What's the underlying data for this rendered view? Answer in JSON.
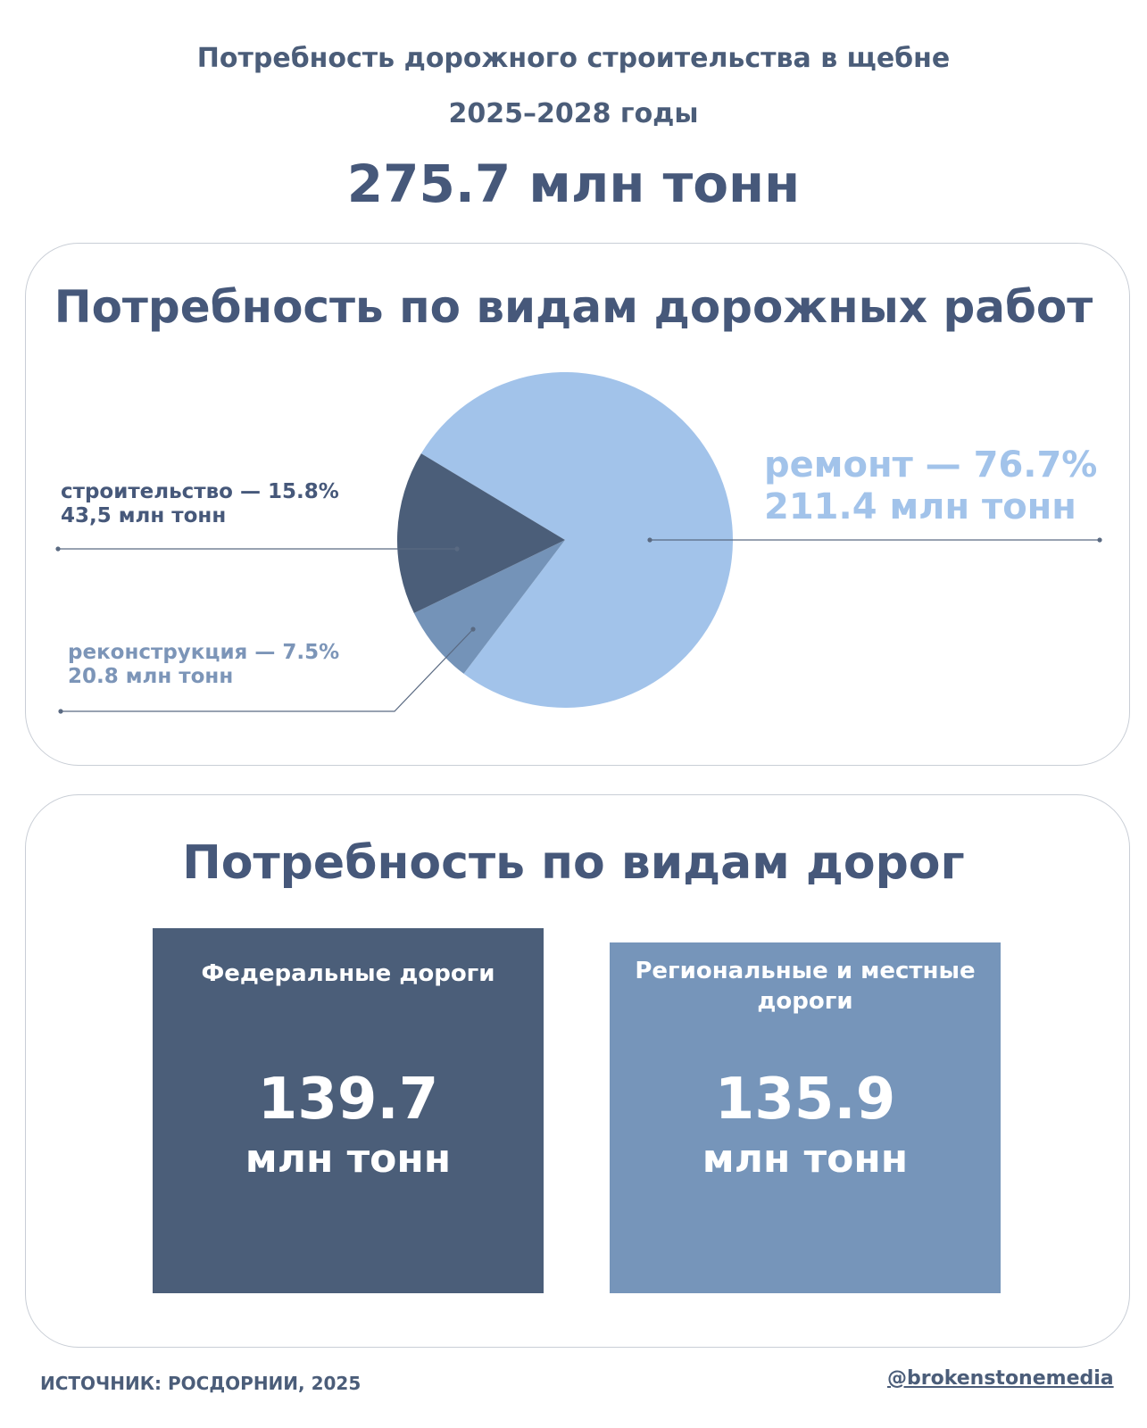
{
  "header": {
    "title_line1": "Потребность дорожного строительства в щебне",
    "title_line2": "2025–2028 годы",
    "total": "275.7 млн тонн"
  },
  "works_section": {
    "title": "Потребность по видам дорожных работ"
  },
  "chart_data": {
    "type": "pie",
    "title": "Потребность по видам дорожных работ",
    "slices": [
      {
        "label": "ремонт",
        "percent": 76.7,
        "value": 211.4,
        "unit": "млн тонн",
        "color": "#a2c3ea",
        "text_line1": "ремонт — 76.7%",
        "text_line2": "211.4 млн тонн"
      },
      {
        "label": "реконструкция",
        "percent": 7.5,
        "value": 20.8,
        "unit": "млн тонн",
        "color": "#7493b8",
        "text_line1": "реконструкция — 7.5%",
        "text_line2": "20.8 млн тонн"
      },
      {
        "label": "строительство",
        "percent": 15.8,
        "value": 43.5,
        "unit": "млн тонн",
        "color": "#4b5e79",
        "text_line1": "строительство — 15.8%",
        "text_line2": "43,5 млн тонн"
      }
    ]
  },
  "roads_section": {
    "title": "Потребность по видам дорог",
    "cards": [
      {
        "title": "Федеральные дороги",
        "value": "139.7",
        "unit": "млн тонн",
        "color": "#4b5e79"
      },
      {
        "title": "Региональные и местные дороги",
        "value": "135.9",
        "unit": "млн тонн",
        "color": "#7695ba"
      }
    ]
  },
  "footer": {
    "source": "ИСТОЧНИК: РОСДОРНИИ, 2025",
    "handle": "@brokenstonemedia"
  },
  "colors": {
    "text_dark": "#46587a",
    "panel_border": "#c9ced6"
  }
}
